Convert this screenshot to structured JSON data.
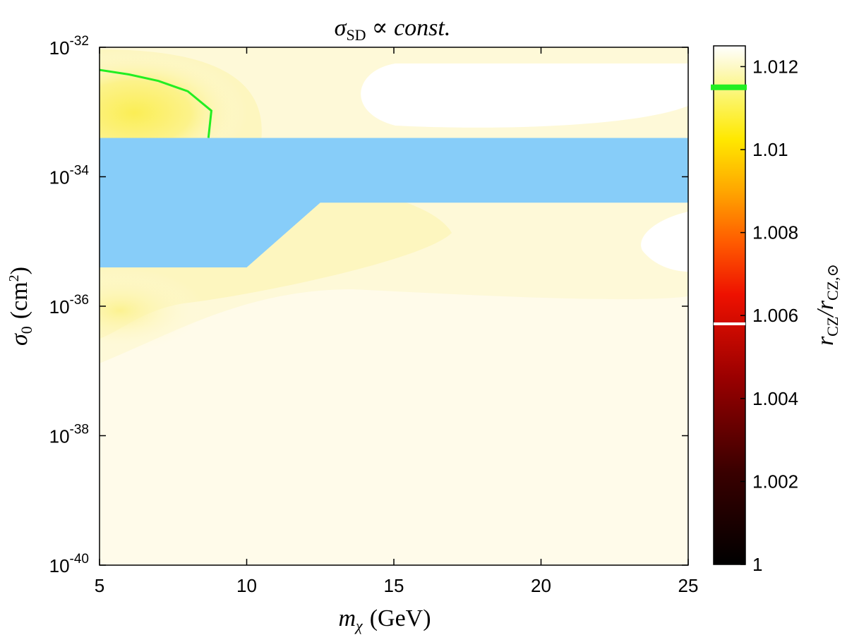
{
  "chart_data": {
    "type": "heatmap",
    "title": "σ",
    "title_subscript": "SD",
    "title_suffix": "∝ const.",
    "xlabel": "m",
    "xlabel_subscript": "χ",
    "xlabel_unit": "(GeV)",
    "ylabel": "σ",
    "ylabel_subscript": "0",
    "ylabel_unit": "(cm",
    "ylabel_unit_sup": "2",
    "ylabel_unit_close": ")",
    "xlim": [
      5,
      25
    ],
    "ylim_log10": [
      -40,
      -32
    ],
    "x_ticks": [
      5,
      10,
      15,
      20,
      25
    ],
    "x_tick_labels": [
      "5",
      "10",
      "15",
      "20",
      "25"
    ],
    "y_ticks_log10": [
      -40,
      -38,
      -36,
      -34,
      -32
    ],
    "y_tick_base": "10",
    "y_tick_exponents": [
      "-40",
      "-38",
      "-36",
      "-34",
      "-32"
    ],
    "colorbar": {
      "label_main": "r",
      "label_sub": "CZ",
      "label_sep": "/r",
      "label_sub2": "CZ,⊙",
      "range": [
        1.0,
        1.0125
      ],
      "ticks": [
        1,
        1.002,
        1.004,
        1.006,
        1.008,
        1.01,
        1.012
      ],
      "tick_labels": [
        "1",
        "1.002",
        "1.004",
        "1.006",
        "1.008",
        "1.01",
        "1.012"
      ],
      "white_marker_value": 1.0058,
      "green_marker_value": 1.0115
    },
    "excluded_region": {
      "description": "excluded band",
      "polygon": [
        [
          5,
          -33.4
        ],
        [
          25,
          -33.4
        ],
        [
          25,
          -34.4
        ],
        [
          12.5,
          -34.4
        ],
        [
          10,
          -35.4
        ],
        [
          5,
          -35.4
        ]
      ],
      "color": "#87cdf9"
    },
    "contour_line": {
      "color": "#22ee22",
      "points": [
        [
          5,
          -32.35
        ],
        [
          6,
          -32.42
        ],
        [
          7,
          -32.52
        ],
        [
          8,
          -32.68
        ],
        [
          8.8,
          -32.98
        ],
        [
          8.7,
          -33.4
        ]
      ]
    },
    "colors": {
      "background_field": "#fffbe6",
      "light": "#fef9d8",
      "medium": "#fdf4b0",
      "strong": "#fcf07a",
      "bright": "#fbee55"
    }
  }
}
